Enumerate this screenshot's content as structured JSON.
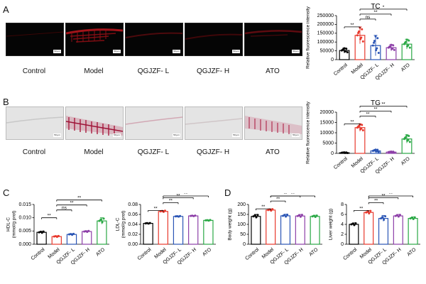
{
  "panels": {
    "A": "A",
    "B": "B",
    "C": "C",
    "D": "D"
  },
  "groups": [
    "Control",
    "Model",
    "QGJZF- L",
    "QGJZF- H",
    "ATO"
  ],
  "scale_bar_label": "50 μm",
  "colors": {
    "Control": "#000000",
    "Model": "#e8392d",
    "QGJZF- L": "#2a55b5",
    "QGJZF- H": "#8d3fa8",
    "ATO": "#2aa845"
  },
  "chart_data": [
    {
      "id": "tc",
      "type": "bar",
      "title": "TC",
      "ylabel": "Relative fluorescence intensity",
      "categories": [
        "Control",
        "Model",
        "QGJZF- L",
        "QGJZF- H",
        "ATO"
      ],
      "values": [
        52000,
        138000,
        80000,
        68000,
        88000
      ],
      "errors": [
        14000,
        48000,
        58000,
        18000,
        28000
      ],
      "ylim": [
        0,
        250000
      ],
      "yticks": [
        0,
        50000,
        100000,
        150000,
        200000,
        250000
      ],
      "brackets": [
        {
          "from": 0,
          "to": 1,
          "label": "**"
        },
        {
          "from": 1,
          "to": 2,
          "label": "ns"
        },
        {
          "from": 1,
          "to": 3,
          "label": "**"
        },
        {
          "from": 1,
          "to": 4,
          "label": "*"
        }
      ]
    },
    {
      "id": "tg",
      "type": "bar",
      "title": "TG",
      "ylabel": "Relative fluorescence intensity",
      "categories": [
        "Control",
        "Model",
        "QGJZF- L",
        "QGJZF- H",
        "ATO"
      ],
      "values": [
        300,
        12500,
        1200,
        600,
        7000
      ],
      "errors": [
        200,
        1800,
        700,
        300,
        2000
      ],
      "ylim": [
        0,
        20000
      ],
      "yticks": [
        0,
        5000,
        10000,
        15000,
        20000
      ],
      "brackets": [
        {
          "from": 0,
          "to": 1,
          "label": "**"
        },
        {
          "from": 1,
          "to": 2,
          "label": "**"
        },
        {
          "from": 1,
          "to": 3,
          "label": "**"
        },
        {
          "from": 1,
          "to": 4,
          "label": "**"
        }
      ]
    },
    {
      "id": "hdl",
      "type": "bar",
      "ylabel": "HDL-C\n(mmol/g prot)",
      "categories": [
        "Control",
        "Model",
        "QGJZF- L",
        "QGJZF- H",
        "ATO"
      ],
      "values": [
        0.0045,
        0.0029,
        0.0037,
        0.0048,
        0.0088
      ],
      "errors": [
        0.0004,
        0.0003,
        0.0003,
        0.0003,
        0.0012
      ],
      "ylim": [
        0,
        0.015
      ],
      "yticks": [
        0.0,
        0.005,
        0.01,
        0.015
      ],
      "yticklabels": [
        "0.000",
        "0.005",
        "0.010",
        "0.015"
      ],
      "brackets": [
        {
          "from": 0,
          "to": 1,
          "label": "**"
        },
        {
          "from": 1,
          "to": 2,
          "label": "ns"
        },
        {
          "from": 1,
          "to": 3,
          "label": "**"
        },
        {
          "from": 1,
          "to": 4,
          "label": "**"
        }
      ]
    },
    {
      "id": "ldl",
      "type": "bar",
      "ylabel": "LDL-C\n(mmol/g prot)",
      "categories": [
        "Control",
        "Model",
        "QGJZF- L",
        "QGJZF- H",
        "ATO"
      ],
      "values": [
        0.042,
        0.066,
        0.056,
        0.057,
        0.048
      ],
      "errors": [
        0.001,
        0.002,
        0.001,
        0.001,
        0.001
      ],
      "ylim": [
        0,
        0.08
      ],
      "yticks": [
        0.0,
        0.02,
        0.04,
        0.06,
        0.08
      ],
      "yticklabels": [
        "0.00",
        "0.02",
        "0.04",
        "0.06",
        "0.08"
      ],
      "brackets": [
        {
          "from": 0,
          "to": 1,
          "label": "**"
        },
        {
          "from": 1,
          "to": 2,
          "label": "**"
        },
        {
          "from": 1,
          "to": 3,
          "label": "**"
        },
        {
          "from": 1,
          "to": 4,
          "label": "**"
        }
      ]
    },
    {
      "id": "bw",
      "type": "bar",
      "ylabel": "Body weight (g)",
      "categories": [
        "Control",
        "Model",
        "QGJZF- L",
        "QGJZF- H",
        "ATO"
      ],
      "values": [
        140,
        172,
        143,
        142,
        140
      ],
      "errors": [
        10,
        6,
        8,
        8,
        6
      ],
      "ylim": [
        0,
        200
      ],
      "yticks": [
        0,
        50,
        100,
        150,
        200
      ],
      "brackets": [
        {
          "from": 0,
          "to": 1,
          "label": "**"
        },
        {
          "from": 1,
          "to": 2,
          "label": "**"
        },
        {
          "from": 1,
          "to": 3,
          "label": "**"
        },
        {
          "from": 1,
          "to": 4,
          "label": "**"
        }
      ]
    },
    {
      "id": "lw",
      "type": "bar",
      "ylabel": "Liver weight (g)",
      "categories": [
        "Control",
        "Model",
        "QGJZF- L",
        "QGJZF- H",
        "ATO"
      ],
      "values": [
        4.0,
        6.4,
        5.2,
        5.7,
        5.2
      ],
      "errors": [
        0.3,
        0.4,
        0.6,
        0.3,
        0.3
      ],
      "ylim": [
        0,
        8
      ],
      "yticks": [
        0,
        2,
        4,
        6,
        8
      ],
      "brackets": [
        {
          "from": 0,
          "to": 1,
          "label": "**"
        },
        {
          "from": 1,
          "to": 2,
          "label": "**"
        },
        {
          "from": 1,
          "to": 3,
          "label": "**"
        },
        {
          "from": 1,
          "to": 4,
          "label": "**"
        }
      ]
    }
  ]
}
